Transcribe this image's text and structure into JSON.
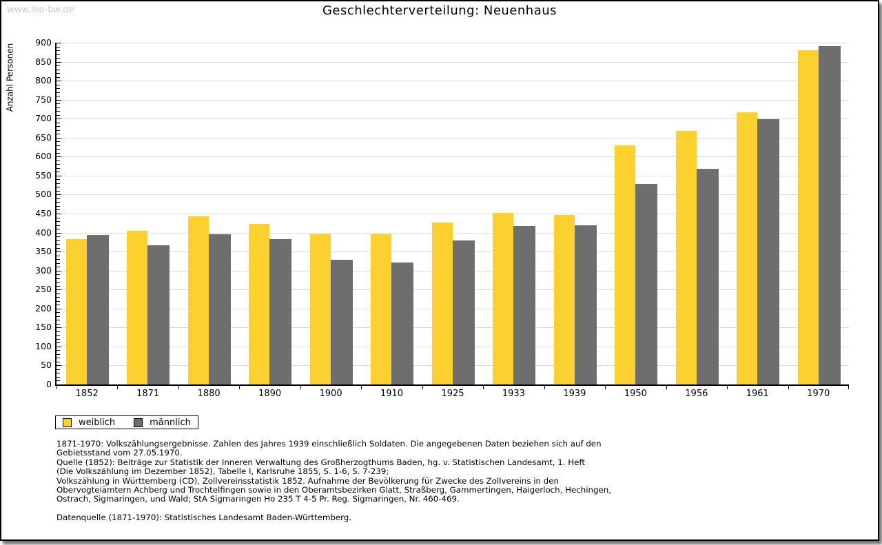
{
  "page": {
    "watermark": "www.leo-bw.de",
    "title": "Geschlechterverteilung: Neuenhaus"
  },
  "chart_data": {
    "type": "bar",
    "title": "Geschlechterverteilung: Neuenhaus",
    "xlabel": "",
    "ylabel": "Anzahl Personen",
    "ylim": [
      0,
      900
    ],
    "ytick_step": 50,
    "y_minor_tick_step": 10,
    "grid": true,
    "legend_position": "bottom-left",
    "categories": [
      "1852",
      "1871",
      "1880",
      "1890",
      "1900",
      "1910",
      "1925",
      "1933",
      "1939",
      "1950",
      "1956",
      "1961",
      "1970"
    ],
    "series": [
      {
        "name": "weiblich",
        "color": "#fcd12f",
        "values": [
          382,
          404,
          442,
          422,
          395,
          395,
          427,
          452,
          447,
          630,
          667,
          716,
          880
        ]
      },
      {
        "name": "männlich",
        "color": "#6e6e6e",
        "values": [
          393,
          366,
          395,
          382,
          329,
          322,
          380,
          417,
          419,
          528,
          568,
          699,
          891
        ]
      }
    ]
  },
  "footnotes": {
    "lines": [
      "1871-1970: Volkszählungsergebnisse. Zahlen des Jahres 1939 einschließlich Soldaten. Die angegebenen Daten beziehen sich auf den",
      "Gebietsstand vom 27.05.1970.",
      "Quelle (1852): Beiträge zur Statistik der Inneren Verwaltung des Großherzogthums Baden, hg. v. Statistischen Landesamt, 1. Heft",
      "(Die Volkszählung im Dezember 1852), Tabelle I, Karlsruhe 1855, S. 1-6, S. 7-239;",
      "Volkszählung in Württemberg (CD), Zollvereinsstatistik 1852. Aufnahme der Bevölkerung für Zwecke des Zollvereins in den",
      "Obervogteiämtern Achberg und Trochtelfingen sowie in den Oberamtsbezirken Glatt, Straßberg, Gammertingen, Haigerloch, Hechingen,",
      "Ostrach, Sigmaringen, und Wald; StA Sigmaringen Ho 235 T 4-5 Pr. Reg. Sigmaringen, Nr. 460-469."
    ],
    "source_line": "Datenquelle (1871-1970): Statistisches Landesamt Baden-Württemberg."
  },
  "colors": {
    "female_bar": "#fcd12f",
    "male_bar": "#6e6e6e",
    "gridline": "#d9d9d9",
    "watermark": "#c9c9c9",
    "axis": "#000000",
    "page_border": "#000000"
  }
}
